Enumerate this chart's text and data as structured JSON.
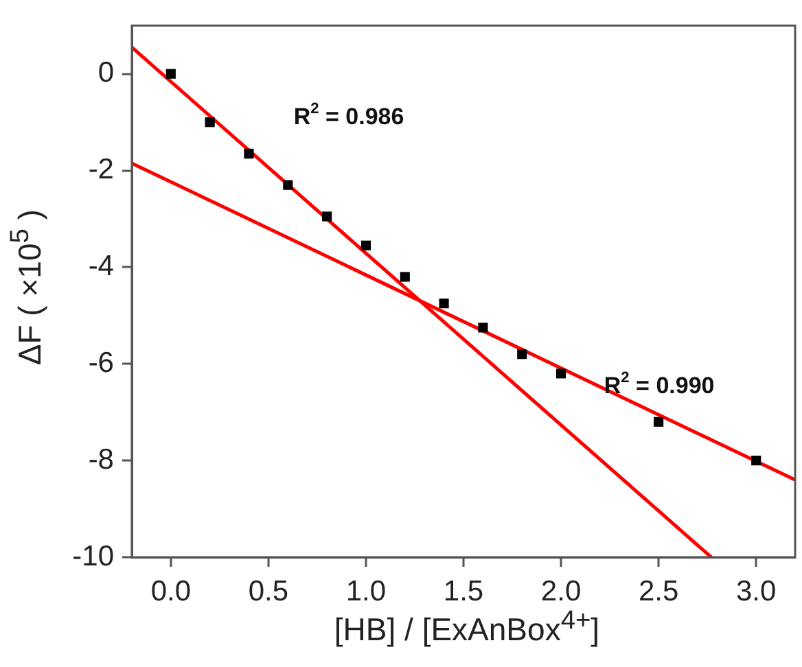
{
  "chart_data": {
    "type": "scatter",
    "xlabel": "[HB] / [ExAnBox$^{4+}$]",
    "ylabel": "ΔF ( ×10$^{5}$ )",
    "xlim": [
      -0.2,
      3.2
    ],
    "xticks": [
      {
        "value": 0,
        "label": "0.0"
      },
      {
        "value": 0.5,
        "label": "0.5"
      },
      {
        "value": 1,
        "label": "1.0"
      },
      {
        "value": 1.5,
        "label": "1.5"
      },
      {
        "value": 2,
        "label": "2.0"
      },
      {
        "value": 2.5,
        "label": "2.5"
      },
      {
        "value": 3,
        "label": "3.0"
      }
    ],
    "ylim": [
      -10,
      1
    ],
    "yticks": [
      -10,
      -8,
      -6,
      -4,
      -2,
      0
    ],
    "grid": false,
    "legend": false,
    "marker": "square",
    "series": [
      {
        "color": "#000000",
        "x": [
          0,
          0.2,
          0.4,
          0.6,
          0.8,
          1.0,
          1.2,
          1.4,
          1.6,
          1.8,
          2.0,
          2.5,
          3.0
        ],
        "values": [
          0,
          -1.0,
          -1.65,
          -2.3,
          -2.95,
          -3.55,
          -4.2,
          -4.75,
          -5.25,
          -5.8,
          -6.2,
          -7.2,
          -8.0
        ]
      },
      {
        "type": "line",
        "color": "#ff0000",
        "marker": "none",
        "x": [
          -0.2,
          2.77
        ],
        "values": [
          0.55,
          -10
        ]
      },
      {
        "type": "line",
        "color": "#ff0000",
        "marker": "none",
        "x": [
          -0.2,
          3.2
        ],
        "values": [
          -1.85,
          -8.4
        ]
      }
    ],
    "annotations": [
      "R$^{2}$ = 0.986",
      "R$^{2}$ = 0.990"
    ]
  }
}
